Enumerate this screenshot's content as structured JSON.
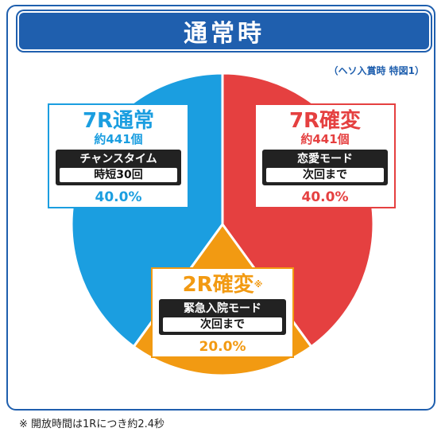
{
  "header": {
    "title": "通常時"
  },
  "note": "（ヘソ入賞時 特図1）",
  "footnote": "※ 開放時間は1Rにつき約2.4秒",
  "chart_data": {
    "type": "pie",
    "title": "通常時",
    "slices": [
      {
        "name": "7R通常",
        "value": 40.0,
        "color": "#1b9ee0"
      },
      {
        "name": "7R確変",
        "value": 40.0,
        "color": "#e54040"
      },
      {
        "name": "2R確変",
        "value": 20.0,
        "color": "#f29a12"
      }
    ],
    "labels": [
      {
        "name": "7R通常",
        "count": "約441個",
        "mode": "チャンスタイム",
        "detail": "時短30回",
        "percent": "40.0%",
        "asterisk": ""
      },
      {
        "name": "7R確変",
        "count": "約441個",
        "mode": "恋愛モード",
        "detail": "次回まで",
        "percent": "40.0%",
        "asterisk": ""
      },
      {
        "name": "2R確変",
        "count": "",
        "mode": "緊急入院モード",
        "detail": "次回まで",
        "percent": "20.0%",
        "asterisk": "※"
      }
    ]
  }
}
